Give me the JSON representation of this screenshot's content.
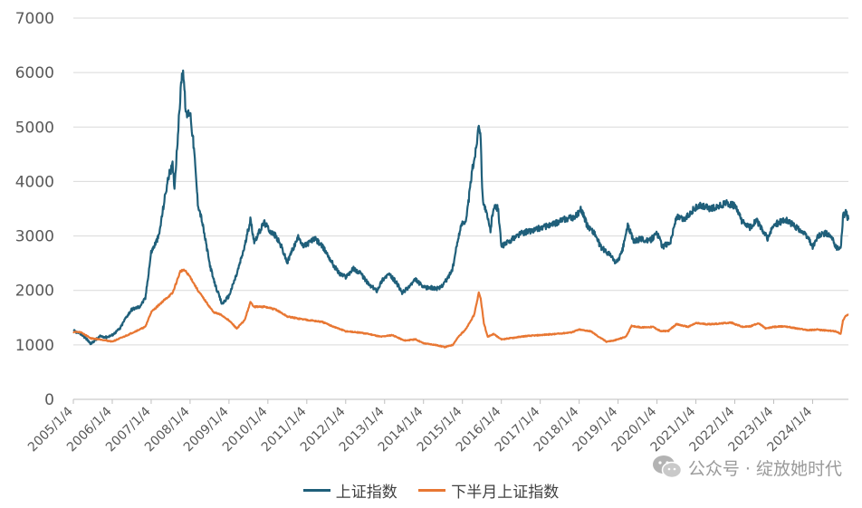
{
  "chart_data": {
    "type": "line",
    "ylim": [
      0,
      7000
    ],
    "yticks": [
      "0",
      "1000",
      "2000",
      "3000",
      "4000",
      "5000",
      "6000",
      "7000"
    ],
    "categories": [
      "2005/1/4",
      "2006/1/4",
      "2007/1/4",
      "2008/1/4",
      "2009/1/4",
      "2010/1/4",
      "2011/1/4",
      "2012/1/4",
      "2013/1/4",
      "2014/1/4",
      "2015/1/4",
      "2016/1/4",
      "2017/1/4",
      "2018/1/4",
      "2019/1/4",
      "2020/1/4",
      "2021/1/4",
      "2022/1/4",
      "2023/1/4",
      "2024/1/4"
    ],
    "grid": true,
    "legend_position": "bottom",
    "series": [
      {
        "name": "上证指数",
        "color": "#1f5f7a",
        "points": [
          [
            2005.0,
            1260
          ],
          [
            2005.2,
            1200
          ],
          [
            2005.35,
            1100
          ],
          [
            2005.45,
            1020
          ],
          [
            2005.55,
            1080
          ],
          [
            2005.7,
            1160
          ],
          [
            2005.85,
            1140
          ],
          [
            2006.0,
            1180
          ],
          [
            2006.2,
            1300
          ],
          [
            2006.35,
            1500
          ],
          [
            2006.5,
            1650
          ],
          [
            2006.7,
            1700
          ],
          [
            2006.85,
            1850
          ],
          [
            2007.0,
            2700
          ],
          [
            2007.2,
            3000
          ],
          [
            2007.35,
            3700
          ],
          [
            2007.45,
            4100
          ],
          [
            2007.55,
            4300
          ],
          [
            2007.6,
            3900
          ],
          [
            2007.7,
            5000
          ],
          [
            2007.78,
            5900
          ],
          [
            2007.82,
            6050
          ],
          [
            2007.9,
            5200
          ],
          [
            2008.0,
            5300
          ],
          [
            2008.1,
            4600
          ],
          [
            2008.2,
            3600
          ],
          [
            2008.3,
            3300
          ],
          [
            2008.4,
            2900
          ],
          [
            2008.5,
            2500
          ],
          [
            2008.6,
            2200
          ],
          [
            2008.72,
            1950
          ],
          [
            2008.82,
            1750
          ],
          [
            2009.0,
            1900
          ],
          [
            2009.2,
            2300
          ],
          [
            2009.4,
            2800
          ],
          [
            2009.55,
            3300
          ],
          [
            2009.65,
            2900
          ],
          [
            2009.8,
            3100
          ],
          [
            2009.9,
            3250
          ],
          [
            2010.05,
            3100
          ],
          [
            2010.2,
            3000
          ],
          [
            2010.35,
            2800
          ],
          [
            2010.5,
            2500
          ],
          [
            2010.6,
            2700
          ],
          [
            2010.8,
            3000
          ],
          [
            2010.9,
            2800
          ],
          [
            2011.0,
            2850
          ],
          [
            2011.2,
            2950
          ],
          [
            2011.35,
            2850
          ],
          [
            2011.5,
            2700
          ],
          [
            2011.7,
            2450
          ],
          [
            2011.85,
            2300
          ],
          [
            2012.0,
            2250
          ],
          [
            2012.2,
            2400
          ],
          [
            2012.4,
            2300
          ],
          [
            2012.6,
            2100
          ],
          [
            2012.8,
            2000
          ],
          [
            2012.95,
            2200
          ],
          [
            2013.1,
            2300
          ],
          [
            2013.3,
            2150
          ],
          [
            2013.45,
            1950
          ],
          [
            2013.6,
            2050
          ],
          [
            2013.8,
            2200
          ],
          [
            2014.0,
            2050
          ],
          [
            2014.2,
            2050
          ],
          [
            2014.4,
            2030
          ],
          [
            2014.6,
            2200
          ],
          [
            2014.75,
            2400
          ],
          [
            2014.9,
            3000
          ],
          [
            2015.0,
            3250
          ],
          [
            2015.1,
            3300
          ],
          [
            2015.25,
            4200
          ],
          [
            2015.35,
            4600
          ],
          [
            2015.42,
            5100
          ],
          [
            2015.46,
            4900
          ],
          [
            2015.52,
            3700
          ],
          [
            2015.62,
            3400
          ],
          [
            2015.72,
            3100
          ],
          [
            2015.8,
            3550
          ],
          [
            2015.92,
            3500
          ],
          [
            2016.0,
            2800
          ],
          [
            2016.2,
            2900
          ],
          [
            2016.5,
            3050
          ],
          [
            2016.8,
            3100
          ],
          [
            2017.0,
            3150
          ],
          [
            2017.3,
            3200
          ],
          [
            2017.6,
            3300
          ],
          [
            2017.9,
            3350
          ],
          [
            2018.05,
            3500
          ],
          [
            2018.2,
            3200
          ],
          [
            2018.4,
            3050
          ],
          [
            2018.55,
            2800
          ],
          [
            2018.8,
            2650
          ],
          [
            2018.95,
            2500
          ],
          [
            2019.1,
            2700
          ],
          [
            2019.25,
            3200
          ],
          [
            2019.4,
            2900
          ],
          [
            2019.6,
            2950
          ],
          [
            2019.8,
            2900
          ],
          [
            2020.0,
            3050
          ],
          [
            2020.15,
            2800
          ],
          [
            2020.35,
            2900
          ],
          [
            2020.5,
            3350
          ],
          [
            2020.7,
            3300
          ],
          [
            2020.95,
            3500
          ],
          [
            2021.1,
            3550
          ],
          [
            2021.4,
            3500
          ],
          [
            2021.6,
            3550
          ],
          [
            2021.8,
            3600
          ],
          [
            2022.0,
            3550
          ],
          [
            2022.2,
            3250
          ],
          [
            2022.4,
            3150
          ],
          [
            2022.55,
            3300
          ],
          [
            2022.75,
            3050
          ],
          [
            2022.85,
            2950
          ],
          [
            2023.0,
            3200
          ],
          [
            2023.3,
            3300
          ],
          [
            2023.5,
            3200
          ],
          [
            2023.7,
            3100
          ],
          [
            2023.9,
            2950
          ],
          [
            2024.0,
            2800
          ],
          [
            2024.15,
            3000
          ],
          [
            2024.35,
            3050
          ],
          [
            2024.5,
            2950
          ],
          [
            2024.6,
            2800
          ],
          [
            2024.72,
            2750
          ],
          [
            2024.78,
            3350
          ],
          [
            2024.85,
            3450
          ],
          [
            2024.92,
            3300
          ]
        ]
      },
      {
        "name": "下半月上证指数",
        "color": "#e87733",
        "points": [
          [
            2005.0,
            1240
          ],
          [
            2005.2,
            1230
          ],
          [
            2005.45,
            1120
          ],
          [
            2005.7,
            1100
          ],
          [
            2006.0,
            1060
          ],
          [
            2006.3,
            1150
          ],
          [
            2006.6,
            1250
          ],
          [
            2006.85,
            1330
          ],
          [
            2007.0,
            1600
          ],
          [
            2007.3,
            1800
          ],
          [
            2007.55,
            1950
          ],
          [
            2007.75,
            2350
          ],
          [
            2007.85,
            2380
          ],
          [
            2008.0,
            2250
          ],
          [
            2008.2,
            2000
          ],
          [
            2008.4,
            1800
          ],
          [
            2008.6,
            1600
          ],
          [
            2008.8,
            1550
          ],
          [
            2009.0,
            1450
          ],
          [
            2009.2,
            1300
          ],
          [
            2009.4,
            1450
          ],
          [
            2009.55,
            1780
          ],
          [
            2009.65,
            1700
          ],
          [
            2009.9,
            1700
          ],
          [
            2010.2,
            1650
          ],
          [
            2010.5,
            1520
          ],
          [
            2010.8,
            1480
          ],
          [
            2011.1,
            1450
          ],
          [
            2011.4,
            1420
          ],
          [
            2011.7,
            1330
          ],
          [
            2012.0,
            1250
          ],
          [
            2012.3,
            1230
          ],
          [
            2012.6,
            1200
          ],
          [
            2012.9,
            1150
          ],
          [
            2013.2,
            1180
          ],
          [
            2013.5,
            1080
          ],
          [
            2013.8,
            1100
          ],
          [
            2014.0,
            1030
          ],
          [
            2014.3,
            1000
          ],
          [
            2014.55,
            960
          ],
          [
            2014.75,
            1000
          ],
          [
            2014.9,
            1150
          ],
          [
            2015.1,
            1300
          ],
          [
            2015.3,
            1550
          ],
          [
            2015.42,
            1950
          ],
          [
            2015.47,
            1850
          ],
          [
            2015.55,
            1400
          ],
          [
            2015.65,
            1150
          ],
          [
            2015.8,
            1200
          ],
          [
            2016.0,
            1100
          ],
          [
            2016.3,
            1130
          ],
          [
            2016.6,
            1160
          ],
          [
            2017.0,
            1180
          ],
          [
            2017.4,
            1200
          ],
          [
            2017.8,
            1230
          ],
          [
            2018.0,
            1280
          ],
          [
            2018.3,
            1250
          ],
          [
            2018.5,
            1150
          ],
          [
            2018.7,
            1060
          ],
          [
            2018.9,
            1080
          ],
          [
            2019.2,
            1150
          ],
          [
            2019.35,
            1350
          ],
          [
            2019.6,
            1320
          ],
          [
            2019.9,
            1330
          ],
          [
            2020.1,
            1250
          ],
          [
            2020.3,
            1260
          ],
          [
            2020.5,
            1380
          ],
          [
            2020.8,
            1330
          ],
          [
            2021.0,
            1400
          ],
          [
            2021.3,
            1380
          ],
          [
            2021.6,
            1390
          ],
          [
            2021.9,
            1410
          ],
          [
            2022.2,
            1330
          ],
          [
            2022.4,
            1340
          ],
          [
            2022.6,
            1400
          ],
          [
            2022.8,
            1300
          ],
          [
            2023.0,
            1330
          ],
          [
            2023.3,
            1340
          ],
          [
            2023.6,
            1300
          ],
          [
            2023.9,
            1270
          ],
          [
            2024.1,
            1280
          ],
          [
            2024.4,
            1260
          ],
          [
            2024.6,
            1250
          ],
          [
            2024.72,
            1200
          ],
          [
            2024.78,
            1450
          ],
          [
            2024.85,
            1530
          ],
          [
            2024.92,
            1550
          ]
        ]
      }
    ]
  },
  "watermark": {
    "text": "公众号 · 绽放她时代",
    "icon": "wechat-icon"
  }
}
